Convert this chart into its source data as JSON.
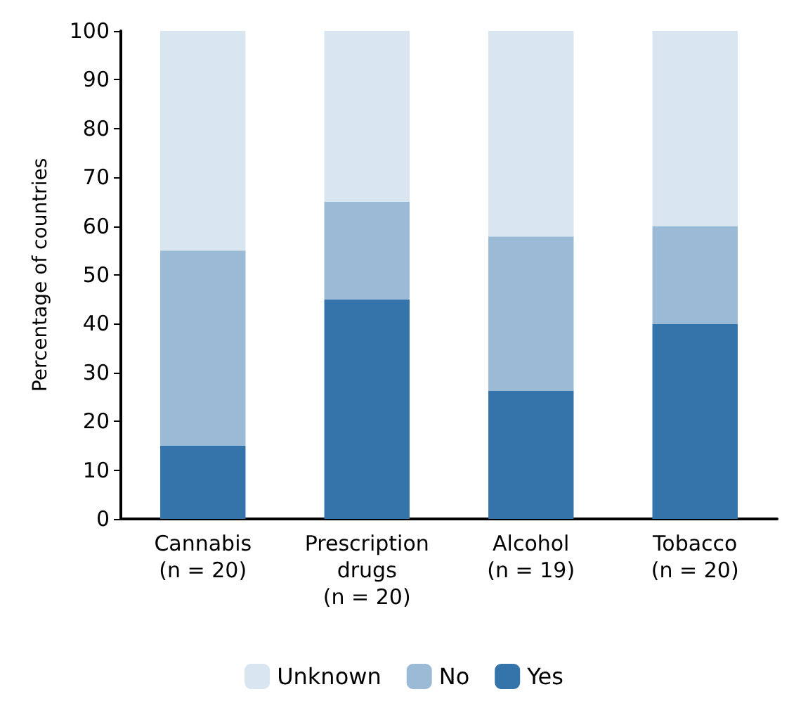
{
  "chart_data": {
    "type": "bar",
    "stacked": true,
    "ylabel": "Percentage of countries",
    "categories": [
      "Cannabis\n(n = 20)",
      "Prescription\ndrugs\n(n = 20)",
      "Alcohol\n(n = 19)",
      "Tobacco\n(n = 20)"
    ],
    "series": [
      {
        "name": "Yes",
        "color": "#3474aa",
        "values": [
          15,
          45,
          26.3,
          40
        ]
      },
      {
        "name": "No",
        "color": "#9abad6",
        "values": [
          40,
          20,
          31.6,
          20
        ]
      },
      {
        "name": "Unknown",
        "color": "#d9e5ef",
        "values": [
          45,
          35,
          42.1,
          40
        ]
      }
    ],
    "ylim": [
      0,
      100
    ],
    "yticks": [
      0,
      10,
      20,
      30,
      40,
      50,
      60,
      70,
      80,
      90,
      100
    ],
    "grid": false,
    "legend": "bottom"
  }
}
